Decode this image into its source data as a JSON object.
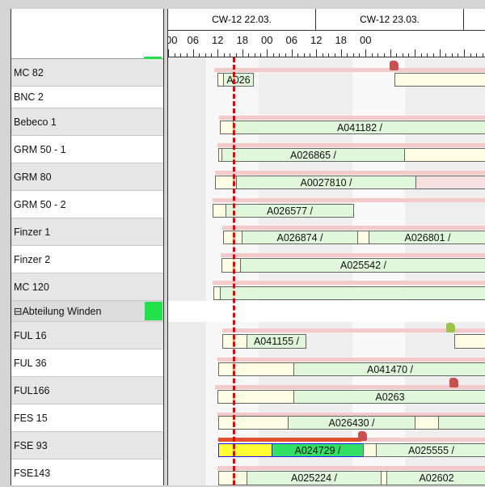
{
  "resources": [
    {
      "label": "MC 82"
    },
    {
      "label": "BNC 2"
    },
    {
      "label": "Bebeco 1"
    },
    {
      "label": "GRM 50 - 1"
    },
    {
      "label": "GRM 80"
    },
    {
      "label": "GRM 50 - 2"
    },
    {
      "label": "Finzer 1"
    },
    {
      "label": "Finzer 2"
    },
    {
      "label": "MC 120"
    },
    {
      "label": "⊟Abteilung Winden",
      "group": true
    },
    {
      "label": "FUL 16"
    },
    {
      "label": "FUL 36"
    },
    {
      "label": "FUL166"
    },
    {
      "label": "FES 15"
    },
    {
      "label": "FSE 93"
    },
    {
      "label": "FSE143"
    }
  ],
  "timeline": {
    "days": [
      "CW-12 22.03.",
      "CW-12 23.03.",
      ""
    ],
    "hours": [
      "00",
      "06",
      "12",
      "18",
      "00",
      "06",
      "12",
      "18",
      "00"
    ]
  },
  "orders": {
    "mc82": "A026",
    "bebeco1": "A041182 /",
    "grm501": "A026865 /",
    "grm80": "A0027810 /",
    "grm502": "A026577 /",
    "finzer1a": "A026874 /",
    "finzer1b": "A026801 /",
    "finzer2": "A025542 /",
    "ful16": "A041155 /",
    "ful36": "A041470 /",
    "ful166": "A0263",
    "fes15": "A026430 /",
    "fse93a": "A024729 /",
    "fse93b": "A025555 /",
    "fse143a": "A025224 /",
    "fse143b": "A02602"
  },
  "colors": {
    "group_status": "#22e04a",
    "current_time": "#ee0000",
    "selected_setup": "#ffff33",
    "selected_run": "#33e066",
    "selected_border": "#1a1aff"
  }
}
